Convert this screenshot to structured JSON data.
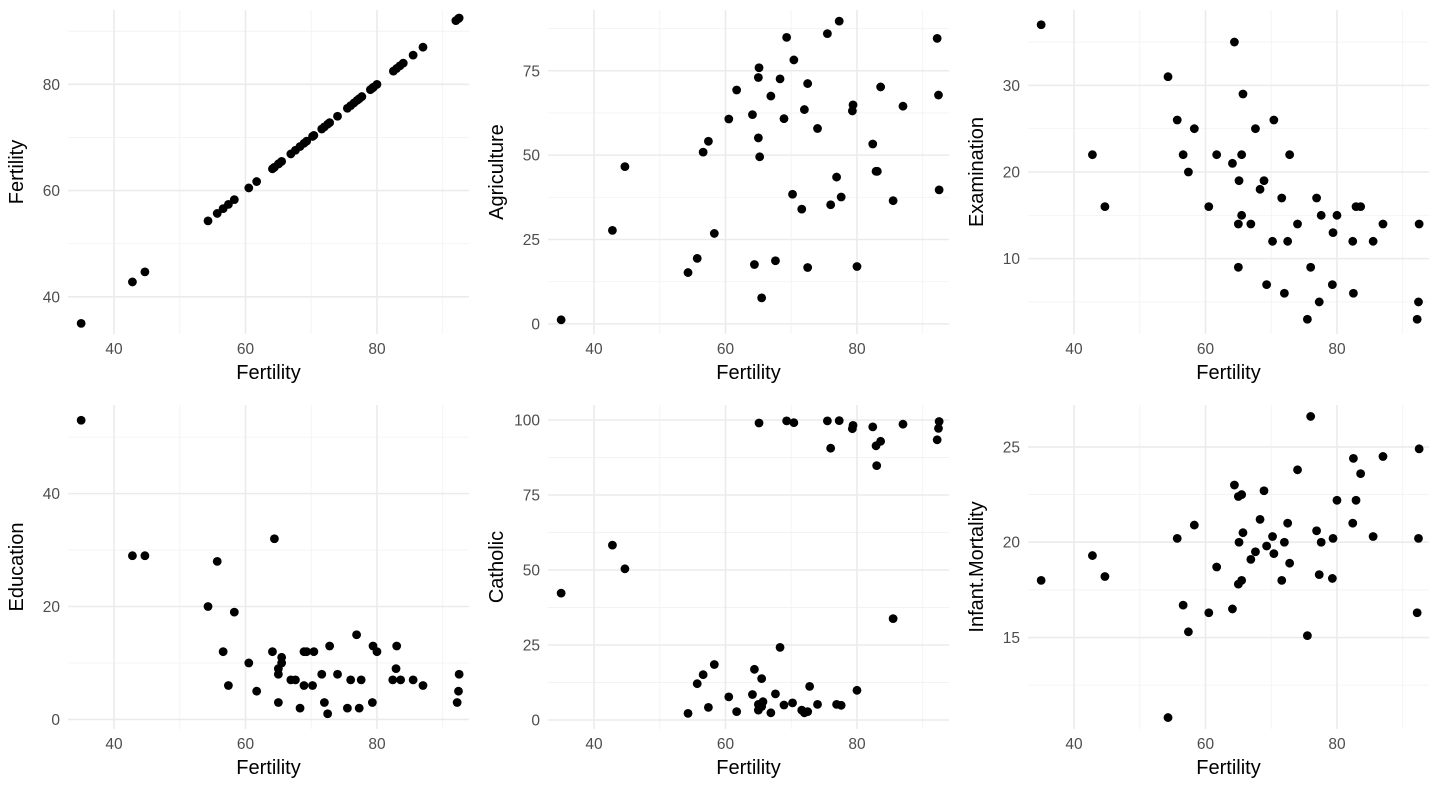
{
  "chart_data": [
    {
      "type": "scatter",
      "xlabel": "Fertility",
      "ylabel": "Fertility",
      "xlim": [
        33,
        94
      ],
      "ylim": [
        33,
        94
      ],
      "x_ticks": [
        40,
        60,
        80
      ],
      "y_ticks": [
        40,
        60,
        80
      ],
      "grid": true,
      "points": [
        [
          35,
          35
        ],
        [
          42.8,
          42.8
        ],
        [
          44.7,
          44.7
        ],
        [
          54.3,
          54.3
        ],
        [
          55.7,
          55.7
        ],
        [
          56.6,
          56.6
        ],
        [
          57.4,
          57.4
        ],
        [
          58.3,
          58.3
        ],
        [
          60.5,
          60.5
        ],
        [
          61.7,
          61.7
        ],
        [
          64.1,
          64.1
        ],
        [
          64.4,
          64.4
        ],
        [
          65,
          65
        ],
        [
          65.1,
          65.1
        ],
        [
          65.5,
          65.5
        ],
        [
          66.9,
          66.9
        ],
        [
          67.6,
          67.6
        ],
        [
          68.3,
          68.3
        ],
        [
          68.9,
          68.9
        ],
        [
          69.3,
          69.3
        ],
        [
          70.2,
          70.2
        ],
        [
          70.4,
          70.4
        ],
        [
          71.6,
          71.6
        ],
        [
          72,
          72
        ],
        [
          72.5,
          72.5
        ],
        [
          72.8,
          72.8
        ],
        [
          74,
          74
        ],
        [
          75.5,
          75.5
        ],
        [
          76,
          76
        ],
        [
          76.5,
          76.5
        ],
        [
          77,
          77
        ],
        [
          77.3,
          77.3
        ],
        [
          77.7,
          77.7
        ],
        [
          79,
          79
        ],
        [
          79.3,
          79.3
        ],
        [
          79.5,
          79.5
        ],
        [
          80,
          80
        ],
        [
          82.5,
          82.5
        ],
        [
          83,
          83
        ],
        [
          83.5,
          83.5
        ],
        [
          84,
          84
        ],
        [
          85.5,
          85.5
        ],
        [
          87,
          87
        ],
        [
          92,
          92
        ],
        [
          92.4,
          92.4
        ],
        [
          92.5,
          92.5
        ]
      ]
    },
    {
      "type": "scatter",
      "xlabel": "Fertility",
      "ylabel": "Agriculture",
      "xlim": [
        33,
        94
      ],
      "ylim": [
        -3,
        93
      ],
      "x_ticks": [
        40,
        60,
        80
      ],
      "y_ticks": [
        0,
        25,
        50,
        75
      ],
      "grid": true,
      "points": [
        [
          35,
          1.2
        ],
        [
          42.8,
          27.7
        ],
        [
          44.7,
          46.6
        ],
        [
          54.3,
          15.2
        ],
        [
          55.7,
          19.4
        ],
        [
          56.6,
          50.9
        ],
        [
          57.4,
          54.1
        ],
        [
          58.3,
          26.8
        ],
        [
          60.5,
          60.7
        ],
        [
          61.7,
          69.3
        ],
        [
          64.1,
          62
        ],
        [
          64.4,
          17.6
        ],
        [
          65,
          55.1
        ],
        [
          65,
          73
        ],
        [
          65.1,
          75.9
        ],
        [
          65.2,
          49.5
        ],
        [
          65.5,
          7.7
        ],
        [
          66.9,
          67.5
        ],
        [
          67.6,
          18.7
        ],
        [
          68.3,
          72.6
        ],
        [
          68.9,
          60.8
        ],
        [
          69.3,
          84.9
        ],
        [
          70.2,
          38.4
        ],
        [
          70.4,
          78.2
        ],
        [
          71.6,
          34
        ],
        [
          72,
          63.5
        ],
        [
          72.5,
          16.7
        ],
        [
          72.5,
          71.2
        ],
        [
          74,
          57.9
        ],
        [
          75.5,
          86.0
        ],
        [
          76,
          35.3
        ],
        [
          76.9,
          43.5
        ],
        [
          77.3,
          89.7
        ],
        [
          77.6,
          37.6
        ],
        [
          79.3,
          63.1
        ],
        [
          79.4,
          64.9
        ],
        [
          80,
          17.0
        ],
        [
          82.4,
          53.3
        ],
        [
          82.9,
          45.2
        ],
        [
          83.1,
          45.2
        ],
        [
          83.6,
          70.2
        ],
        [
          85.5,
          36.5
        ],
        [
          87,
          64.5
        ],
        [
          92.2,
          84.6
        ],
        [
          92.4,
          67.8
        ],
        [
          92.5,
          39.7
        ]
      ]
    },
    {
      "type": "scatter",
      "xlabel": "Fertility",
      "ylabel": "Examination",
      "xlim": [
        33,
        94
      ],
      "ylim": [
        1.3,
        38.7
      ],
      "x_ticks": [
        40,
        60,
        80
      ],
      "y_ticks": [
        10,
        20,
        30
      ],
      "grid": true,
      "points": [
        [
          35,
          37
        ],
        [
          42.8,
          22
        ],
        [
          44.7,
          16
        ],
        [
          54.3,
          31
        ],
        [
          55.7,
          26
        ],
        [
          56.6,
          22
        ],
        [
          57.4,
          20
        ],
        [
          58.3,
          25
        ],
        [
          60.5,
          16
        ],
        [
          61.7,
          22
        ],
        [
          64.1,
          21
        ],
        [
          64.4,
          35
        ],
        [
          65,
          14
        ],
        [
          65,
          9
        ],
        [
          65.1,
          19
        ],
        [
          65.5,
          15
        ],
        [
          65.5,
          22
        ],
        [
          65.7,
          29
        ],
        [
          66.9,
          14
        ],
        [
          67.6,
          25
        ],
        [
          68.3,
          18
        ],
        [
          68.9,
          19
        ],
        [
          69.3,
          7
        ],
        [
          70.2,
          12
        ],
        [
          70.4,
          26
        ],
        [
          71.6,
          17
        ],
        [
          72,
          6
        ],
        [
          72.5,
          12
        ],
        [
          72.8,
          22
        ],
        [
          74,
          14
        ],
        [
          75.5,
          3
        ],
        [
          76,
          9
        ],
        [
          76.9,
          17
        ],
        [
          77.3,
          5
        ],
        [
          77.6,
          15
        ],
        [
          79.3,
          7
        ],
        [
          79.4,
          13
        ],
        [
          80,
          15
        ],
        [
          82.4,
          12
        ],
        [
          82.5,
          6
        ],
        [
          82.9,
          16
        ],
        [
          83.6,
          16
        ],
        [
          85.5,
          12
        ],
        [
          87,
          14
        ],
        [
          92.2,
          3
        ],
        [
          92.4,
          5
        ],
        [
          92.5,
          14
        ]
      ]
    },
    {
      "type": "scatter",
      "xlabel": "Fertility",
      "ylabel": "Education",
      "xlim": [
        33,
        94
      ],
      "ylim": [
        -1.7,
        55.7
      ],
      "x_ticks": [
        40,
        60,
        80
      ],
      "y_ticks": [
        0,
        20,
        40
      ],
      "grid": true,
      "points": [
        [
          35,
          53
        ],
        [
          42.8,
          29
        ],
        [
          44.7,
          29
        ],
        [
          54.3,
          20
        ],
        [
          55.7,
          28
        ],
        [
          56.6,
          12
        ],
        [
          57.4,
          6
        ],
        [
          58.3,
          19
        ],
        [
          60.5,
          10
        ],
        [
          61.7,
          5
        ],
        [
          64.1,
          12
        ],
        [
          64.4,
          32
        ],
        [
          65,
          3
        ],
        [
          65,
          8
        ],
        [
          65,
          9
        ],
        [
          65.5,
          10
        ],
        [
          65.5,
          11
        ],
        [
          66.9,
          7
        ],
        [
          67.6,
          7
        ],
        [
          68.3,
          2
        ],
        [
          68.9,
          12
        ],
        [
          68.9,
          6
        ],
        [
          69.3,
          12
        ],
        [
          70.2,
          6
        ],
        [
          70.4,
          12
        ],
        [
          71.6,
          8
        ],
        [
          72,
          3
        ],
        [
          72.5,
          1
        ],
        [
          72.8,
          13
        ],
        [
          74,
          8
        ],
        [
          75.5,
          2
        ],
        [
          76,
          7
        ],
        [
          76.9,
          15
        ],
        [
          77.3,
          2
        ],
        [
          77.6,
          7
        ],
        [
          79.3,
          3
        ],
        [
          79.4,
          13
        ],
        [
          80,
          12
        ],
        [
          82.4,
          7
        ],
        [
          82.9,
          9
        ],
        [
          83,
          13
        ],
        [
          83.6,
          7
        ],
        [
          85.5,
          7
        ],
        [
          87,
          6
        ],
        [
          92.2,
          3
        ],
        [
          92.4,
          5
        ],
        [
          92.5,
          8
        ]
      ]
    },
    {
      "type": "scatter",
      "xlabel": "Fertility",
      "ylabel": "Catholic",
      "xlim": [
        33,
        94
      ],
      "ylim": [
        -3,
        105
      ],
      "x_ticks": [
        40,
        60,
        80
      ],
      "y_ticks": [
        0,
        25,
        50,
        75,
        100
      ],
      "grid": true,
      "points": [
        [
          35,
          42.3
        ],
        [
          42.8,
          58.3
        ],
        [
          44.7,
          50.4
        ],
        [
          54.3,
          2.2
        ],
        [
          55.7,
          12.1
        ],
        [
          56.6,
          15.1
        ],
        [
          57.4,
          4.2
        ],
        [
          58.3,
          18.5
        ],
        [
          60.5,
          7.7
        ],
        [
          61.7,
          2.8
        ],
        [
          64.1,
          8.5
        ],
        [
          64.4,
          16.9
        ],
        [
          65,
          5.2
        ],
        [
          65,
          3.3
        ],
        [
          65.1,
          99.0
        ],
        [
          65.5,
          13.8
        ],
        [
          65.5,
          4.5
        ],
        [
          65.7,
          6.1
        ],
        [
          66.9,
          2.4
        ],
        [
          67.6,
          8.7
        ],
        [
          68.3,
          24.2
        ],
        [
          68.9,
          5.0
        ],
        [
          69.3,
          99.7
        ],
        [
          70.2,
          5.7
        ],
        [
          70.4,
          99.1
        ],
        [
          71.6,
          3.3
        ],
        [
          72,
          2.4
        ],
        [
          72.5,
          2.8
        ],
        [
          72.8,
          11.2
        ],
        [
          74,
          5.2
        ],
        [
          75.5,
          99.7
        ],
        [
          76,
          90.6
        ],
        [
          76.9,
          5.2
        ],
        [
          77.3,
          99.8
        ],
        [
          77.6,
          4.9
        ],
        [
          79.3,
          97.1
        ],
        [
          79.4,
          98.2
        ],
        [
          80,
          9.9
        ],
        [
          82.4,
          97.7
        ],
        [
          82.9,
          91.4
        ],
        [
          83,
          84.8
        ],
        [
          83.6,
          92.9
        ],
        [
          85.5,
          33.8
        ],
        [
          87,
          98.6
        ],
        [
          92.2,
          93.4
        ],
        [
          92.4,
          97.2
        ],
        [
          92.5,
          99.5
        ]
      ]
    },
    {
      "type": "scatter",
      "xlabel": "Fertility",
      "ylabel": "Infant.Mortality",
      "xlim": [
        33,
        94
      ],
      "ylim": [
        10.2,
        27.2
      ],
      "x_ticks": [
        40,
        60,
        80
      ],
      "y_ticks": [
        15,
        20,
        25
      ],
      "grid": true,
      "points": [
        [
          35,
          18.0
        ],
        [
          42.8,
          19.3
        ],
        [
          44.7,
          18.2
        ],
        [
          54.3,
          10.8
        ],
        [
          55.7,
          20.2
        ],
        [
          56.6,
          16.7
        ],
        [
          57.4,
          15.3
        ],
        [
          58.3,
          20.9
        ],
        [
          60.5,
          16.3
        ],
        [
          61.7,
          18.7
        ],
        [
          64.1,
          16.5
        ],
        [
          64.4,
          23.0
        ],
        [
          65,
          17.8
        ],
        [
          65,
          22.4
        ],
        [
          65.1,
          20.0
        ],
        [
          65.5,
          18.0
        ],
        [
          65.5,
          22.5
        ],
        [
          65.7,
          20.5
        ],
        [
          66.9,
          19.1
        ],
        [
          67.6,
          19.5
        ],
        [
          68.3,
          21.2
        ],
        [
          68.9,
          22.7
        ],
        [
          69.3,
          19.8
        ],
        [
          70.2,
          20.3
        ],
        [
          70.4,
          19.4
        ],
        [
          71.6,
          18.0
        ],
        [
          72,
          20.0
        ],
        [
          72.5,
          21.0
        ],
        [
          72.8,
          18.9
        ],
        [
          74,
          23.8
        ],
        [
          75.5,
          15.1
        ],
        [
          76,
          26.6
        ],
        [
          76.9,
          20.6
        ],
        [
          77.3,
          18.3
        ],
        [
          77.6,
          20.0
        ],
        [
          79.3,
          18.1
        ],
        [
          79.4,
          20.2
        ],
        [
          80,
          22.2
        ],
        [
          82.4,
          21.0
        ],
        [
          82.5,
          24.4
        ],
        [
          82.9,
          22.2
        ],
        [
          83.6,
          23.6
        ],
        [
          85.5,
          20.3
        ],
        [
          87,
          24.5
        ],
        [
          92.2,
          16.3
        ],
        [
          92.4,
          20.2
        ],
        [
          92.5,
          24.9
        ]
      ]
    }
  ]
}
